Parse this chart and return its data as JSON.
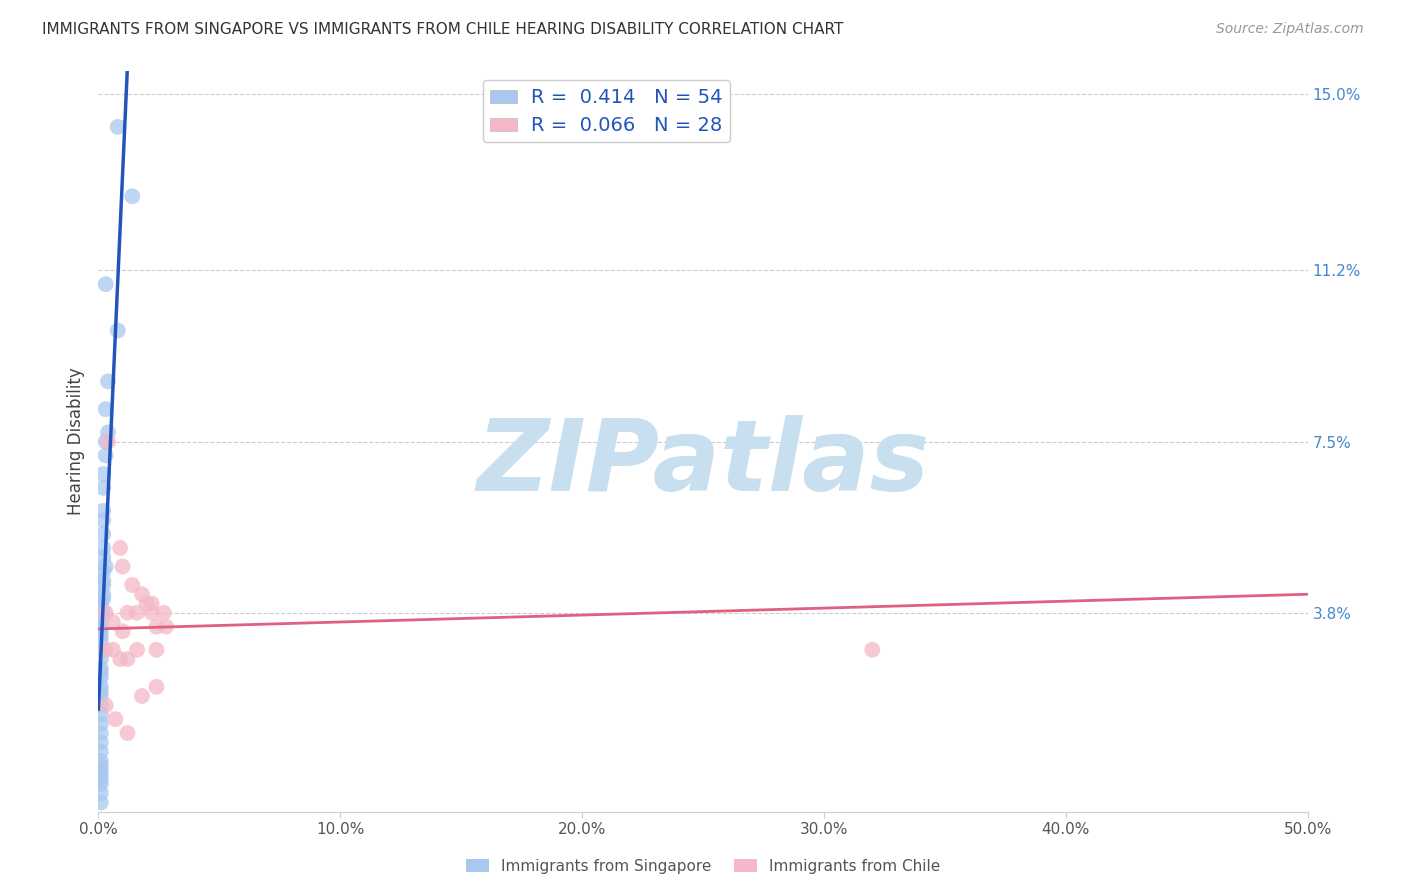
{
  "title": "IMMIGRANTS FROM SINGAPORE VS IMMIGRANTS FROM CHILE HEARING DISABILITY CORRELATION CHART",
  "source": "Source: ZipAtlas.com",
  "ylabel": "Hearing Disability",
  "xlim": [
    0.0,
    0.5
  ],
  "ylim": [
    -0.005,
    0.155
  ],
  "xticks": [
    0.0,
    0.1,
    0.2,
    0.3,
    0.4,
    0.5
  ],
  "xticklabels": [
    "0.0%",
    "10.0%",
    "20.0%",
    "30.0%",
    "40.0%",
    "50.0%"
  ],
  "yticks_right": [
    0.038,
    0.075,
    0.112,
    0.15
  ],
  "ytick_right_labels": [
    "3.8%",
    "7.5%",
    "11.2%",
    "15.0%"
  ],
  "legend1_R": "0.414",
  "legend1_N": "54",
  "legend2_R": "0.066",
  "legend2_N": "28",
  "singapore_color": "#a8c8f0",
  "chile_color": "#f4b8c8",
  "singapore_line_color": "#2255bb",
  "chile_line_color": "#e06080",
  "background_color": "#ffffff",
  "watermark": "ZIPatlas",
  "watermark_color": "#c8dff0",
  "sg_x": [
    0.008,
    0.014,
    0.003,
    0.008,
    0.004,
    0.003,
    0.004,
    0.003,
    0.003,
    0.002,
    0.002,
    0.002,
    0.002,
    0.002,
    0.002,
    0.002,
    0.003,
    0.002,
    0.002,
    0.002,
    0.002,
    0.002,
    0.001,
    0.001,
    0.001,
    0.001,
    0.001,
    0.001,
    0.001,
    0.001,
    0.001,
    0.001,
    0.001,
    0.002,
    0.001,
    0.001,
    0.001,
    0.001,
    0.001,
    0.001,
    0.001,
    0.001,
    0.001,
    0.001,
    0.001,
    0.001,
    0.001,
    0.001,
    0.001,
    0.001,
    0.001,
    0.001,
    0.001,
    0.001
  ],
  "sg_y": [
    0.143,
    0.128,
    0.109,
    0.099,
    0.088,
    0.082,
    0.077,
    0.075,
    0.072,
    0.068,
    0.065,
    0.06,
    0.058,
    0.055,
    0.052,
    0.05,
    0.048,
    0.047,
    0.045,
    0.044,
    0.042,
    0.041,
    0.04,
    0.039,
    0.038,
    0.037,
    0.036,
    0.035,
    0.034,
    0.033,
    0.032,
    0.03,
    0.028,
    0.038,
    0.026,
    0.025,
    0.024,
    0.022,
    0.021,
    0.02,
    0.018,
    0.016,
    0.014,
    0.012,
    0.01,
    0.008,
    0.006,
    0.005,
    0.004,
    0.003,
    0.002,
    0.001,
    -0.001,
    -0.003
  ],
  "ch_x": [
    0.004,
    0.009,
    0.01,
    0.014,
    0.018,
    0.02,
    0.022,
    0.027,
    0.024,
    0.003,
    0.006,
    0.01,
    0.012,
    0.016,
    0.022,
    0.028,
    0.003,
    0.006,
    0.009,
    0.012,
    0.016,
    0.024,
    0.32,
    0.003,
    0.007,
    0.012,
    0.018,
    0.024
  ],
  "ch_y": [
    0.075,
    0.052,
    0.048,
    0.044,
    0.042,
    0.04,
    0.04,
    0.038,
    0.035,
    0.038,
    0.036,
    0.034,
    0.038,
    0.038,
    0.038,
    0.035,
    0.03,
    0.03,
    0.028,
    0.028,
    0.03,
    0.03,
    0.03,
    0.018,
    0.015,
    0.012,
    0.02,
    0.022
  ]
}
